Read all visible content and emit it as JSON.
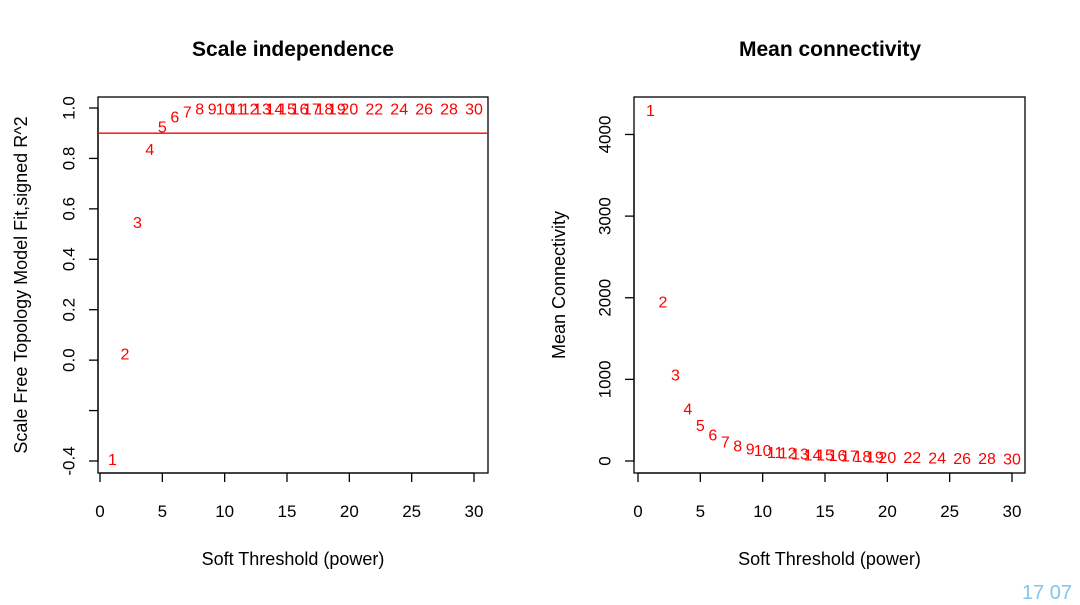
{
  "corner_text": "17 07",
  "colors": {
    "points": "#ff0000",
    "threshold_line": "#ff0000",
    "axis": "#000000"
  },
  "chart_data": [
    {
      "type": "scatter",
      "title": "Scale independence",
      "xlabel": "Soft Threshold (power)",
      "ylabel": "Scale Free Topology Model Fit,signed R^2",
      "xlim": [
        0,
        30
      ],
      "ylim": [
        -0.4,
        1.0
      ],
      "xticks": [
        0,
        5,
        10,
        15,
        20,
        25,
        30
      ],
      "yticks": [
        -0.4,
        0.0,
        0.2,
        0.4,
        0.6,
        0.8,
        1.0
      ],
      "ytick_labels": [
        "-0.4",
        "0.0",
        "0.2",
        "0.4",
        "0.6",
        "0.8",
        "1.0"
      ],
      "point_marker": "text label (power)",
      "hline": 0.9,
      "points": [
        {
          "x": 1,
          "y": -0.4,
          "label": "1"
        },
        {
          "x": 2,
          "y": 0.02,
          "label": "2"
        },
        {
          "x": 3,
          "y": 0.54,
          "label": "3"
        },
        {
          "x": 4,
          "y": 0.83,
          "label": "4"
        },
        {
          "x": 5,
          "y": 0.92,
          "label": "5"
        },
        {
          "x": 6,
          "y": 0.96,
          "label": "6"
        },
        {
          "x": 7,
          "y": 0.98,
          "label": "7"
        },
        {
          "x": 8,
          "y": 0.99,
          "label": "8"
        },
        {
          "x": 9,
          "y": 0.99,
          "label": "9"
        },
        {
          "x": 10,
          "y": 0.99,
          "label": "10"
        },
        {
          "x": 11,
          "y": 0.99,
          "label": "11"
        },
        {
          "x": 12,
          "y": 0.99,
          "label": "12"
        },
        {
          "x": 13,
          "y": 0.99,
          "label": "13"
        },
        {
          "x": 14,
          "y": 0.99,
          "label": "14"
        },
        {
          "x": 15,
          "y": 0.99,
          "label": "15"
        },
        {
          "x": 16,
          "y": 0.99,
          "label": "16"
        },
        {
          "x": 17,
          "y": 0.99,
          "label": "17"
        },
        {
          "x": 18,
          "y": 0.99,
          "label": "18"
        },
        {
          "x": 19,
          "y": 0.99,
          "label": "19"
        },
        {
          "x": 20,
          "y": 0.99,
          "label": "20"
        },
        {
          "x": 22,
          "y": 0.99,
          "label": "22"
        },
        {
          "x": 24,
          "y": 0.99,
          "label": "24"
        },
        {
          "x": 26,
          "y": 0.99,
          "label": "26"
        },
        {
          "x": 28,
          "y": 0.99,
          "label": "28"
        },
        {
          "x": 30,
          "y": 0.99,
          "label": "30"
        }
      ]
    },
    {
      "type": "scatter",
      "title": "Mean connectivity",
      "xlabel": "Soft Threshold (power)",
      "ylabel": "Mean Connectivity",
      "xlim": [
        0,
        30
      ],
      "ylim": [
        0,
        4300
      ],
      "xticks": [
        0,
        5,
        10,
        15,
        20,
        25,
        30
      ],
      "yticks": [
        0,
        1000,
        2000,
        3000,
        4000
      ],
      "ytick_labels": [
        "0",
        "1000",
        "2000",
        "3000",
        "4000"
      ],
      "point_marker": "text label (power)",
      "points": [
        {
          "x": 1,
          "y": 4280,
          "label": "1"
        },
        {
          "x": 2,
          "y": 1930,
          "label": "2"
        },
        {
          "x": 3,
          "y": 1040,
          "label": "3"
        },
        {
          "x": 4,
          "y": 620,
          "label": "4"
        },
        {
          "x": 5,
          "y": 420,
          "label": "5"
        },
        {
          "x": 6,
          "y": 300,
          "label": "6"
        },
        {
          "x": 7,
          "y": 220,
          "label": "7"
        },
        {
          "x": 8,
          "y": 170,
          "label": "8"
        },
        {
          "x": 9,
          "y": 130,
          "label": "9"
        },
        {
          "x": 10,
          "y": 110,
          "label": "10"
        },
        {
          "x": 11,
          "y": 90,
          "label": "11"
        },
        {
          "x": 12,
          "y": 80,
          "label": "12"
        },
        {
          "x": 13,
          "y": 70,
          "label": "13"
        },
        {
          "x": 14,
          "y": 60,
          "label": "14"
        },
        {
          "x": 15,
          "y": 55,
          "label": "15"
        },
        {
          "x": 16,
          "y": 50,
          "label": "16"
        },
        {
          "x": 17,
          "y": 45,
          "label": "17"
        },
        {
          "x": 18,
          "y": 40,
          "label": "18"
        },
        {
          "x": 19,
          "y": 35,
          "label": "19"
        },
        {
          "x": 20,
          "y": 30,
          "label": "20"
        },
        {
          "x": 22,
          "y": 25,
          "label": "22"
        },
        {
          "x": 24,
          "y": 20,
          "label": "24"
        },
        {
          "x": 26,
          "y": 15,
          "label": "26"
        },
        {
          "x": 28,
          "y": 12,
          "label": "28"
        },
        {
          "x": 30,
          "y": 10,
          "label": "30"
        }
      ]
    }
  ]
}
